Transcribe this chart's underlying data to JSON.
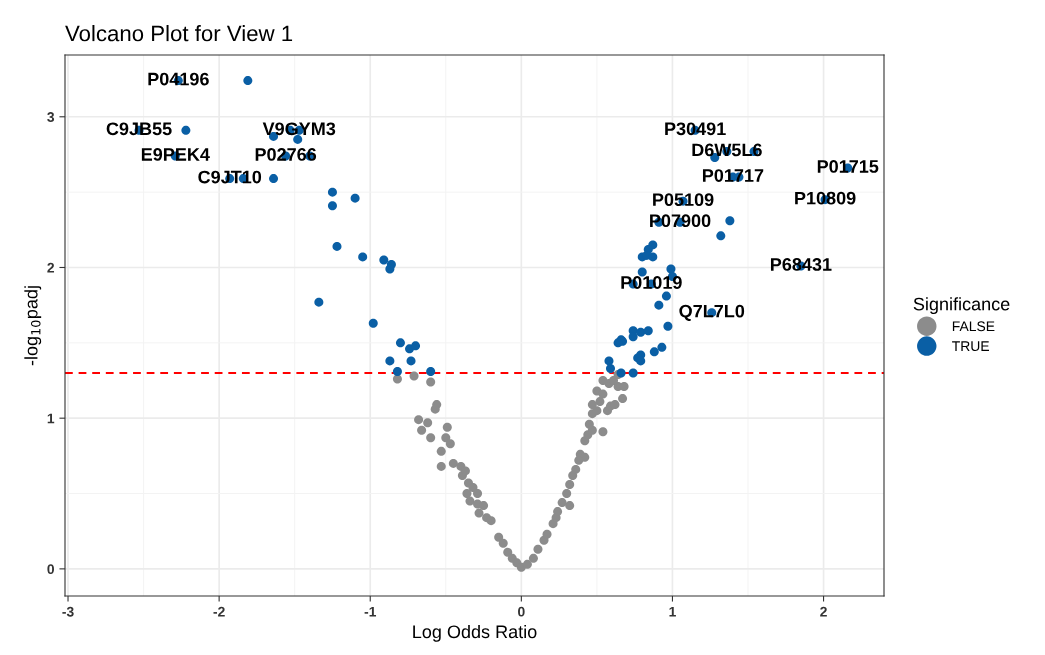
{
  "chart_data": {
    "type": "scatter",
    "title": "Volcano Plot for View 1",
    "xlabel": "Log Odds Ratio",
    "ylabel": "-log$_{10}$padj",
    "legend_title": "Significance",
    "xlim": [
      -3.02,
      2.4
    ],
    "ylim": [
      -0.18,
      3.41
    ],
    "xticks": [
      -3,
      -2,
      -1,
      0,
      1,
      2
    ],
    "yticks": [
      0,
      1,
      2,
      3
    ],
    "grid": true,
    "legend": "right",
    "marker": "circle",
    "series": [
      {
        "name": "FALSE",
        "color": "#8c8c8c",
        "x": [
          -0.82,
          -0.71,
          -0.6,
          -0.56,
          -0.57,
          -0.68,
          -0.62,
          -0.66,
          -0.49,
          -0.6,
          -0.5,
          -0.47,
          -0.53,
          -0.53,
          -0.45,
          -0.4,
          -0.39,
          -0.37,
          -0.35,
          -0.32,
          -0.36,
          -0.29,
          -0.34,
          -0.29,
          -0.25,
          -0.28,
          -0.23,
          -0.2,
          -0.15,
          -0.12,
          -0.09,
          -0.06,
          -0.03,
          0.0,
          0.04,
          0.08,
          0.11,
          0.15,
          0.17,
          0.21,
          0.23,
          0.24,
          0.27,
          0.32,
          0.3,
          0.32,
          0.34,
          0.36,
          0.39,
          0.42,
          0.38,
          0.42,
          0.44,
          0.47,
          0.54,
          0.45,
          0.47,
          0.5,
          0.47,
          0.52,
          0.57,
          0.59,
          0.62,
          0.5,
          0.54,
          0.58,
          0.54,
          0.64,
          0.67,
          0.61,
          0.64,
          0.68
        ],
        "values": [
          1.26,
          1.28,
          1.24,
          1.09,
          1.06,
          0.99,
          0.97,
          0.92,
          0.94,
          0.87,
          0.87,
          0.83,
          0.78,
          0.68,
          0.7,
          0.68,
          0.62,
          0.65,
          0.57,
          0.54,
          0.5,
          0.5,
          0.45,
          0.43,
          0.42,
          0.37,
          0.34,
          0.32,
          0.21,
          0.17,
          0.11,
          0.07,
          0.04,
          0.01,
          0.03,
          0.07,
          0.13,
          0.19,
          0.23,
          0.3,
          0.34,
          0.38,
          0.44,
          0.42,
          0.5,
          0.56,
          0.62,
          0.66,
          0.76,
          0.74,
          0.72,
          0.85,
          0.89,
          0.92,
          0.91,
          0.96,
          1.03,
          1.05,
          1.09,
          1.11,
          1.05,
          1.08,
          1.09,
          1.18,
          1.16,
          1.23,
          1.25,
          1.21,
          1.13,
          1.25,
          1.29,
          1.21
        ]
      },
      {
        "name": "TRUE",
        "color": "#0a5fa5",
        "x": [
          -1.81,
          -2.27,
          -2.53,
          -2.22,
          -2.29,
          -1.93,
          -1.84,
          -1.64,
          -1.64,
          -1.53,
          -1.47,
          -1.48,
          -1.56,
          -1.4,
          -1.25,
          -1.25,
          -1.1,
          -1.22,
          -1.05,
          -0.91,
          -0.86,
          -0.87,
          -1.34,
          -0.98,
          -0.8,
          -0.74,
          -0.7,
          -0.87,
          -0.73,
          -0.82,
          -0.6,
          1.15,
          1.28,
          1.36,
          1.54,
          1.4,
          1.44,
          2.16,
          2.01,
          1.07,
          0.91,
          1.05,
          1.38,
          1.32,
          0.87,
          0.84,
          0.8,
          0.83,
          0.87,
          1.85,
          0.99,
          0.8,
          1.0,
          0.74,
          0.86,
          0.96,
          0.91,
          1.26,
          0.97,
          0.74,
          0.79,
          0.84,
          0.74,
          0.66,
          0.67,
          0.64,
          0.93,
          0.88,
          0.79,
          0.77,
          0.79,
          0.58,
          0.59,
          0.66,
          0.74
        ],
        "values": [
          3.24,
          3.24,
          2.91,
          2.91,
          2.74,
          2.59,
          2.59,
          2.59,
          2.87,
          2.91,
          2.91,
          2.85,
          2.74,
          2.74,
          2.5,
          2.41,
          2.46,
          2.14,
          2.07,
          2.05,
          2.02,
          1.99,
          1.77,
          1.63,
          1.5,
          1.46,
          1.48,
          1.38,
          1.38,
          1.31,
          1.31,
          2.91,
          2.73,
          2.77,
          2.77,
          2.6,
          2.6,
          2.66,
          2.45,
          2.44,
          2.3,
          2.3,
          2.31,
          2.21,
          2.15,
          2.12,
          2.07,
          2.08,
          2.07,
          2.01,
          1.99,
          1.97,
          1.94,
          1.89,
          1.89,
          1.81,
          1.75,
          1.7,
          1.61,
          1.58,
          1.57,
          1.58,
          1.54,
          1.52,
          1.51,
          1.5,
          1.47,
          1.44,
          1.42,
          1.4,
          1.38,
          1.38,
          1.33,
          1.3,
          1.3
        ]
      }
    ],
    "ref_lines": [
      {
        "axis": "y",
        "value": 1.3,
        "color": "#ff0000",
        "line_style": "dashed"
      }
    ],
    "annotations": [
      {
        "text": "P04196",
        "x": -2.27,
        "y": 3.24
      },
      {
        "text": "C9JB55",
        "x": -2.53,
        "y": 2.91
      },
      {
        "text": "V9GYM3",
        "x": -1.47,
        "y": 2.91
      },
      {
        "text": "E9PEK4",
        "x": -2.29,
        "y": 2.74
      },
      {
        "text": "P02766",
        "x": -1.56,
        "y": 2.74
      },
      {
        "text": "C9JT10",
        "x": -1.93,
        "y": 2.59
      },
      {
        "text": "P30491",
        "x": 1.15,
        "y": 2.91
      },
      {
        "text": "D6W5L6",
        "x": 1.36,
        "y": 2.77
      },
      {
        "text": "P01715",
        "x": 2.16,
        "y": 2.66
      },
      {
        "text": "P01717",
        "x": 1.4,
        "y": 2.6
      },
      {
        "text": "P10809",
        "x": 2.01,
        "y": 2.45
      },
      {
        "text": "P05109",
        "x": 1.07,
        "y": 2.44
      },
      {
        "text": "P07900",
        "x": 1.05,
        "y": 2.3
      },
      {
        "text": "P68431",
        "x": 1.85,
        "y": 2.01
      },
      {
        "text": "P01019",
        "x": 0.86,
        "y": 1.89
      },
      {
        "text": "Q7L7L0",
        "x": 1.26,
        "y": 1.7
      }
    ]
  }
}
